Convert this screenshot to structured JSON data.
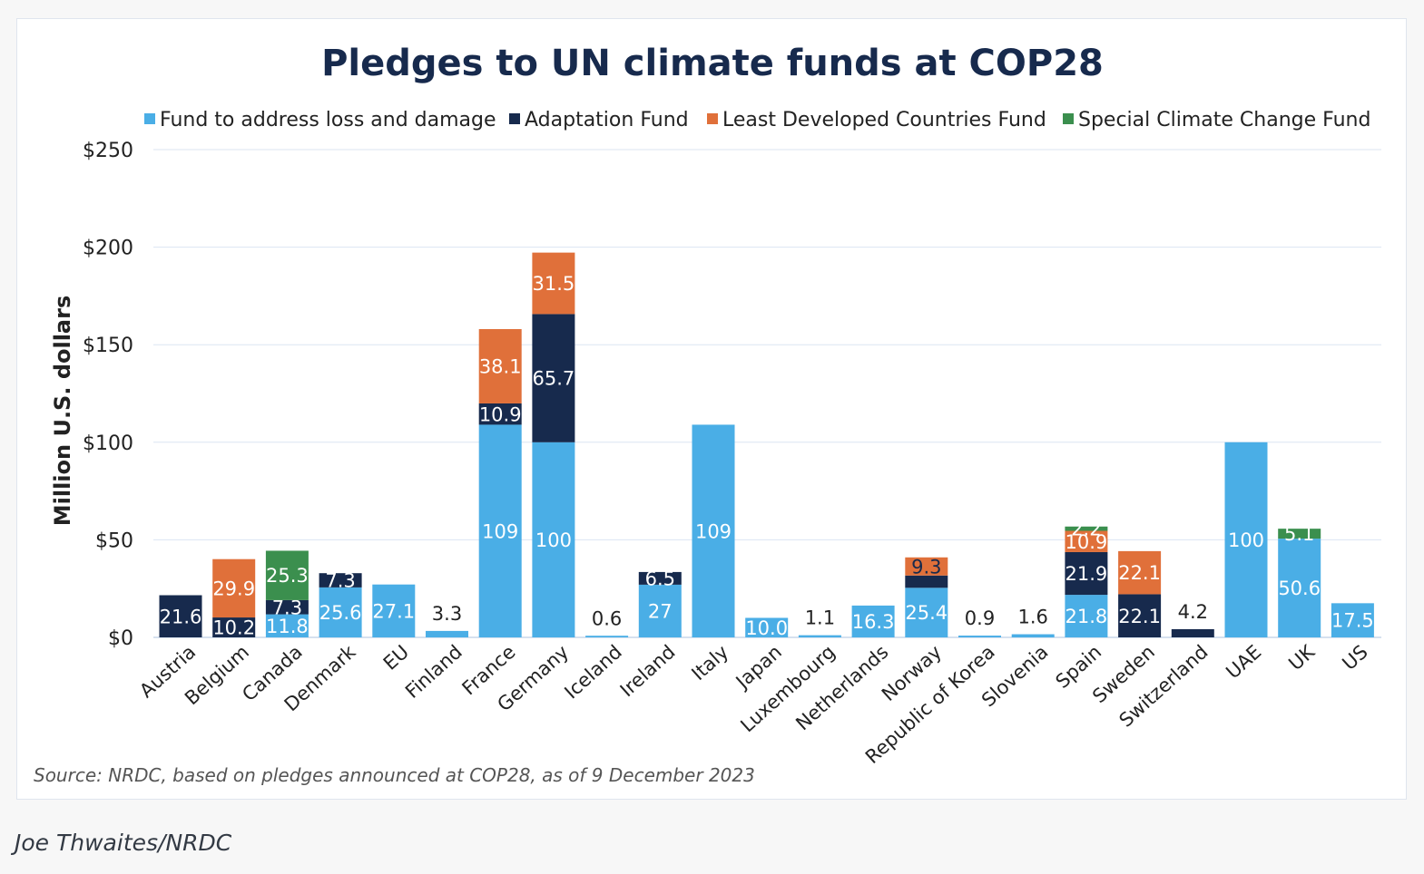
{
  "caption_credit": "Joe Thwaites/NRDC",
  "chart_data": {
    "type": "bar",
    "stacked": true,
    "title": "Pledges to UN climate funds at COP28",
    "ylabel": "Million U.S. dollars",
    "xlabel": "",
    "ylim": [
      0,
      250
    ],
    "yticks": [
      0,
      50,
      100,
      150,
      200,
      250
    ],
    "ytick_labels": [
      "$0",
      "$50",
      "$100",
      "$150",
      "$200",
      "$250"
    ],
    "grid": true,
    "legend_position": "top",
    "source": "Source: NRDC, based on pledges announced at COP28, as of 9 December 2023",
    "categories": [
      "Austria",
      "Belgium",
      "Canada",
      "Denmark",
      "EU",
      "Finland",
      "France",
      "Germany",
      "Iceland",
      "Ireland",
      "Italy",
      "Japan",
      "Luxembourg",
      "Netherlands",
      "Norway",
      "Republic of Korea",
      "Slovenia",
      "Spain",
      "Sweden",
      "Switzerland",
      "UAE",
      "UK",
      "US"
    ],
    "series": [
      {
        "name": "Fund to address loss and damage",
        "color": "#4aaee6",
        "values": [
          0,
          0,
          11.8,
          25.6,
          27.1,
          3.3,
          109,
          100,
          0.6,
          27,
          109,
          10.0,
          1.1,
          16.3,
          25.4,
          0.9,
          1.6,
          21.8,
          0,
          0,
          100,
          50.6,
          17.5
        ],
        "labels": [
          "",
          "",
          "11.8",
          "25.6",
          "27.1",
          "",
          "109",
          "100",
          "",
          "27",
          "109",
          "10.0",
          "",
          "16.3",
          "25.4",
          "",
          "",
          "21.8",
          "",
          "",
          "100",
          "50.6",
          "17.5"
        ]
      },
      {
        "name": "Adaptation Fund",
        "color": "#172a4d",
        "values": [
          21.6,
          10.2,
          7.3,
          7.3,
          0,
          0,
          10.9,
          65.7,
          0,
          6.5,
          0,
          0,
          0,
          0,
          6.3,
          0,
          0,
          21.9,
          22.1,
          4.2,
          0,
          0,
          0
        ],
        "labels": [
          "21.6",
          "10.2",
          "7.3",
          "7.3",
          "",
          "",
          "10.9",
          "65.7",
          "",
          "6.5",
          "",
          "",
          "",
          "",
          "",
          "",
          "",
          "21.9",
          "22.1",
          "",
          "",
          "",
          ""
        ],
        "label_colors": [
          "#ffffff",
          "#ffffff",
          "#ffffff",
          "#ffffff",
          "",
          "",
          "#ffffff",
          "#ffffff",
          "",
          "#ffffff",
          "",
          "",
          "",
          "",
          "",
          "",
          "",
          "#ffffff",
          "#ffffff",
          "",
          "",
          "",
          ""
        ]
      },
      {
        "name": "Least Developed Countries Fund",
        "color": "#e0703a",
        "values": [
          0,
          29.9,
          0,
          0,
          0,
          0,
          38.1,
          31.5,
          0,
          0,
          0,
          0,
          0,
          0,
          9.3,
          0,
          0,
          10.9,
          22.1,
          0,
          0,
          0,
          0
        ],
        "labels": [
          "",
          "29.9",
          "",
          "",
          "",
          "",
          "38.1",
          "31.5",
          "",
          "",
          "",
          "",
          "",
          "",
          "9.3",
          "",
          "",
          "10.9",
          "22.1",
          "",
          "",
          "",
          ""
        ],
        "label_colors": [
          "",
          "#ffffff",
          "",
          "",
          "",
          "",
          "#ffffff",
          "#ffffff",
          "",
          "",
          "",
          "",
          "",
          "",
          "#172a4d",
          "",
          "",
          "#ffffff",
          "#ffffff",
          "",
          "",
          "",
          ""
        ]
      },
      {
        "name": "Special Climate Change Fund",
        "color": "#3b8f4e",
        "values": [
          0,
          0,
          25.3,
          0,
          0,
          0,
          0,
          0,
          0,
          0,
          0,
          0,
          0,
          0,
          0,
          0,
          0,
          2.2,
          0,
          0,
          0,
          5.1,
          0
        ],
        "labels": [
          "",
          "",
          "25.3",
          "",
          "",
          "",
          "",
          "",
          "",
          "",
          "",
          "",
          "",
          "",
          "",
          "",
          "",
          "2.2",
          "",
          "",
          "",
          "5.1",
          ""
        ],
        "label_colors": [
          "",
          "",
          "#ffffff",
          "",
          "",
          "",
          "",
          "",
          "",
          "",
          "",
          "",
          "",
          "",
          "",
          "",
          "",
          "#ffffff",
          "",
          "",
          "",
          "#ffffff",
          ""
        ]
      }
    ],
    "top_labels": [
      "",
      "",
      "",
      "",
      "",
      "3.3",
      "",
      "",
      "0.6",
      "",
      "",
      "",
      "1.1",
      "",
      "",
      "0.9",
      "1.6",
      "",
      "",
      "4.2",
      "",
      "",
      ""
    ]
  }
}
